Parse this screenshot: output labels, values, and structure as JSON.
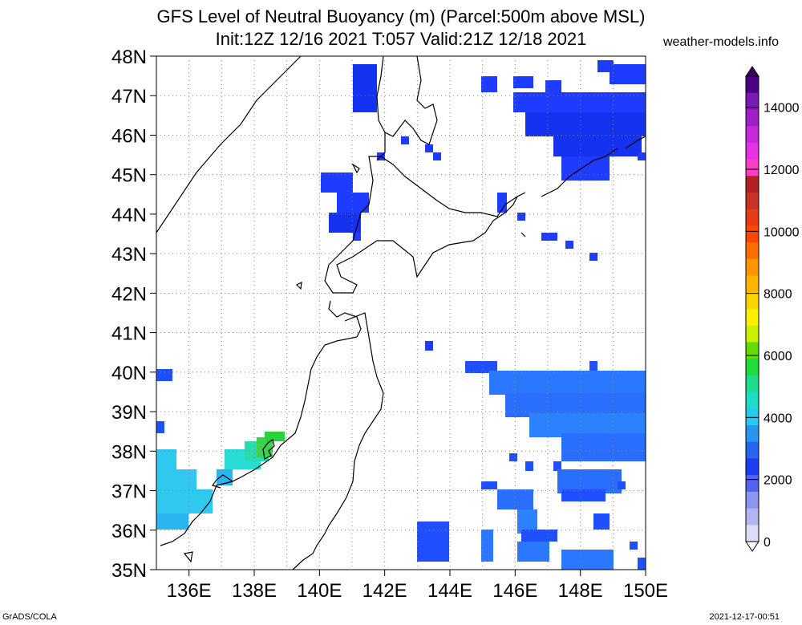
{
  "header": {
    "title_line1": "GFS Level of Neutral Buoyancy (m) (Parcel:500m above MSL)",
    "title_line2": "Init:12Z 12/16 2021 T:057 Valid:21Z 12/18 2021",
    "site": "weather-models.info"
  },
  "map": {
    "lat_labels": [
      "48N",
      "47N",
      "46N",
      "45N",
      "44N",
      "43N",
      "42N",
      "41N",
      "40N",
      "39N",
      "38N",
      "37N",
      "36N",
      "35N"
    ],
    "lon_labels": [
      "136E",
      "138E",
      "140E",
      "142E",
      "144E",
      "146E",
      "148E",
      "150E"
    ],
    "lon_range": [
      135,
      150
    ],
    "lat_range": [
      35,
      48
    ]
  },
  "colorbar": {
    "labels": [
      "14000",
      "12000",
      "10000",
      "8000",
      "6000",
      "4000",
      "2000",
      "0"
    ],
    "unit": "m"
  },
  "footer": {
    "left": "GrADS/COLA",
    "right": "2021-12-17-00:51"
  }
}
